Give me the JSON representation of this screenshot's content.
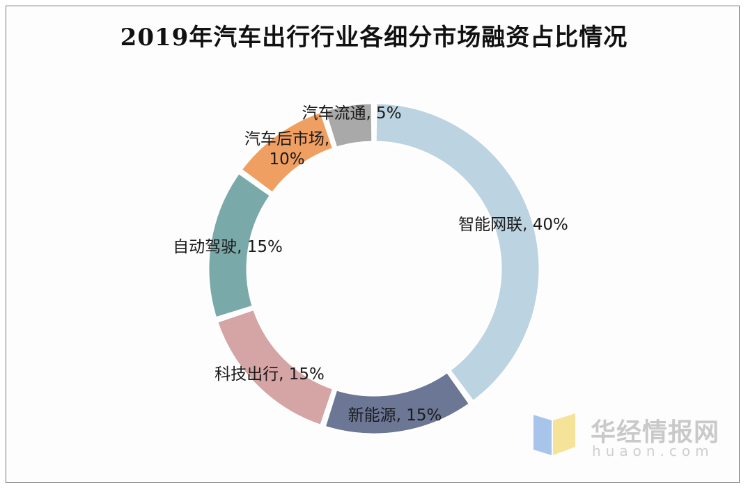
{
  "chart_data": {
    "type": "pie",
    "variant": "donut",
    "title": "2019年汽车出行行业各细分市场融资占比情况",
    "slices": [
      {
        "name": "智能网联",
        "value": 40,
        "label": "智能网联, 40%",
        "color": "#bcd3e1"
      },
      {
        "name": "新能源",
        "value": 15,
        "label": "新能源, 15%",
        "color": "#6c7795"
      },
      {
        "name": "科技出行",
        "value": 15,
        "label": "科技出行, 15%",
        "color": "#d5a5a5"
      },
      {
        "name": "自动驾驶",
        "value": 15,
        "label": "自动驾驶, 15%",
        "color": "#7aa9aa"
      },
      {
        "name": "汽车后市场",
        "value": 10,
        "label": "汽车后市场,\n10%",
        "color": "#ef9f62"
      },
      {
        "name": "汽车流通",
        "value": 5,
        "label": "汽车流通, 5%",
        "color": "#a9a9a9"
      }
    ],
    "legend": "none",
    "unit": "%"
  },
  "watermark": {
    "text_cn": "华经情报网",
    "text_en": "huaon.com",
    "logo_colors": [
      "#a8c4ea",
      "#f6e39a"
    ]
  }
}
